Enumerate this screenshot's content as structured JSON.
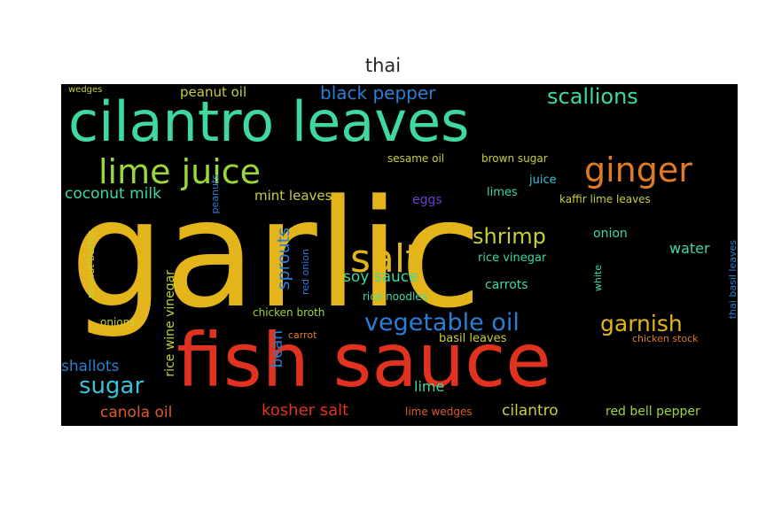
{
  "title": "thai",
  "words": [
    {
      "text": "garlic",
      "color": "#e3b51a"
    },
    {
      "text": "fish sauce",
      "color": "#e0321f"
    },
    {
      "text": "cilantro leaves",
      "color": "#3fd9a0"
    },
    {
      "text": "lime juice",
      "color": "#9bd63a"
    },
    {
      "text": "ginger",
      "color": "#e07b22"
    },
    {
      "text": "salt",
      "color": "#e3b51a"
    },
    {
      "text": "vegetable oil",
      "color": "#2a7fd4"
    },
    {
      "text": "garnish",
      "color": "#e3b51a"
    },
    {
      "text": "scallions",
      "color": "#3fd9a0"
    },
    {
      "text": "black pepper",
      "color": "#2a7fd4"
    },
    {
      "text": "peanut oil",
      "color": "#c6cf3a"
    },
    {
      "text": "coconut milk",
      "color": "#3fd9a0"
    },
    {
      "text": "mint leaves",
      "color": "#c6cf3a"
    },
    {
      "text": "shrimp",
      "color": "#c6cf3a"
    },
    {
      "text": "soy sauce",
      "color": "#3fd9a0"
    },
    {
      "text": "sugar",
      "color": "#3bc1d9"
    },
    {
      "text": "shallots",
      "color": "#2a7fd4"
    },
    {
      "text": "canola oil",
      "color": "#e05a2a"
    },
    {
      "text": "kosher salt",
      "color": "#e0321f"
    },
    {
      "text": "cilantro",
      "color": "#c6cf3a"
    },
    {
      "text": "red bell pepper",
      "color": "#9bd63a"
    },
    {
      "text": "lime wedges",
      "color": "#e05a2a"
    },
    {
      "text": "sesame oil",
      "color": "#c6cf3a"
    },
    {
      "text": "brown sugar",
      "color": "#c6cf3a"
    },
    {
      "text": "juice",
      "color": "#3bc1d9"
    },
    {
      "text": "limes",
      "color": "#3fd9a0"
    },
    {
      "text": "kaffir lime leaves",
      "color": "#c6cf3a"
    },
    {
      "text": "water",
      "color": "#3fd9a0"
    },
    {
      "text": "onion",
      "color": "#3fd9a0"
    },
    {
      "text": "rice vinegar",
      "color": "#3fd9a0"
    },
    {
      "text": "carrots",
      "color": "#3fd9a0"
    },
    {
      "text": "rice noodles",
      "color": "#3fd9a0"
    },
    {
      "text": "chicken broth",
      "color": "#9bd63a"
    },
    {
      "text": "basil leaves",
      "color": "#c6cf3a"
    },
    {
      "text": "lime",
      "color": "#3fd9a0"
    },
    {
      "text": "onions",
      "color": "#c6cf3a"
    },
    {
      "text": "carrot",
      "color": "#e07b22"
    },
    {
      "text": "chicken stock",
      "color": "#e07b22"
    },
    {
      "text": "eggs",
      "color": "#6a3fd4"
    },
    {
      "text": "wedges",
      "color": "#c6cf3a"
    },
    {
      "text": "sprouts",
      "color": "#2a7fd4"
    },
    {
      "text": "bean",
      "color": "#2a7fd4"
    },
    {
      "text": "rice wine vinegar",
      "color": "#c6cf3a"
    },
    {
      "text": "peanut butter",
      "color": "#c6cf3a"
    },
    {
      "text": "thai basil leaves",
      "color": "#2a7fd4"
    },
    {
      "text": "red onion",
      "color": "#2a7fd4"
    },
    {
      "text": "peanuts",
      "color": "#2a7fd4"
    },
    {
      "text": "white",
      "color": "#3fd9a0"
    }
  ]
}
